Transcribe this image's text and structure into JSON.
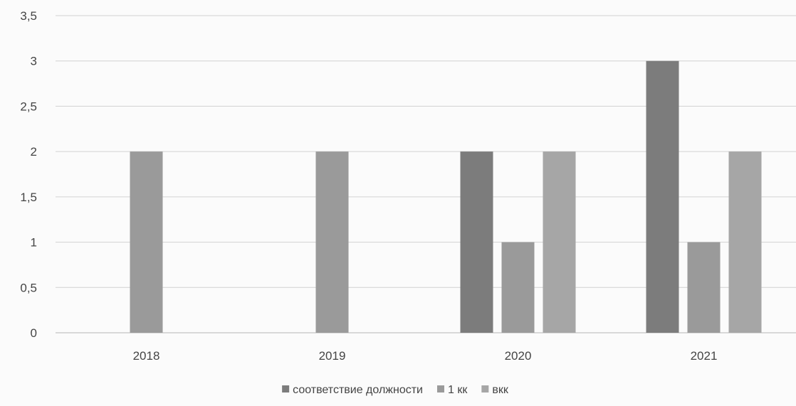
{
  "chart_data": {
    "type": "bar",
    "categories": [
      "2018",
      "2019",
      "2020",
      "2021"
    ],
    "series": [
      {
        "name": "соответствие должности",
        "values": [
          0,
          0,
          2,
          3
        ],
        "color": "#7c7c7c"
      },
      {
        "name": "1 кк",
        "values": [
          2,
          2,
          1,
          1
        ],
        "color": "#9a9a9a"
      },
      {
        "name": "вкк",
        "values": [
          0,
          0,
          2,
          2
        ],
        "color": "#a6a6a6"
      }
    ],
    "ylim": [
      0,
      3.5
    ],
    "yticks": [
      "0",
      "0,5",
      "1",
      "1,5",
      "2",
      "2,5",
      "3",
      "3,5"
    ],
    "title": "",
    "xlabel": "",
    "ylabel": "",
    "grid": true,
    "legend_position": "bottom-center"
  }
}
